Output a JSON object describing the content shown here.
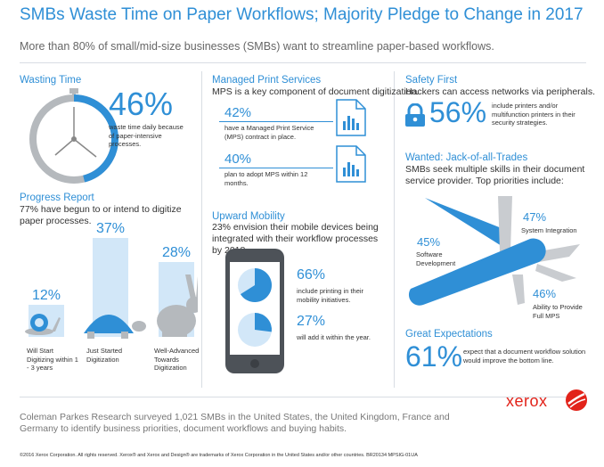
{
  "header": {
    "title": "SMBs Waste Time on Paper Workflows; Majority Pledge to Change in 2017",
    "subtitle": "More than 80% of small/mid-size businesses (SMBs) want to streamline paper-based workflows."
  },
  "wasting_time": {
    "heading": "Wasting Time",
    "stat": "46%",
    "desc": "waste time daily because of paper-intensive processes.",
    "fraction": 0.46
  },
  "progress": {
    "heading": "Progress Report",
    "desc": "77% have begun to or intend to digitize paper processes.",
    "bars": [
      {
        "value": "12%",
        "label": "Will Start Digitizing within 1 - 3 years",
        "num": 12,
        "icon": "snail-icon"
      },
      {
        "value": "37%",
        "label": "Just Started Digitization",
        "num": 37,
        "icon": "turtle-icon"
      },
      {
        "value": "28%",
        "label": "Well-Advanced Towards Digitization",
        "num": 28,
        "icon": "rabbit-icon"
      }
    ]
  },
  "mps": {
    "heading": "Managed Print Services",
    "desc": "MPS is a key component of document digitization.",
    "items": [
      {
        "value": "42%",
        "text": "have a Managed Print Service (MPS) contract in place."
      },
      {
        "value": "40%",
        "text": "plan to adopt MPS within 12 months."
      }
    ]
  },
  "mobility": {
    "heading": "Upward Mobility",
    "desc": "23% envision their mobile devices being integrated with their workflow processes by 2018.",
    "items": [
      {
        "value": "66%",
        "text": "include printing in their mobility initiatives."
      },
      {
        "value": "27%",
        "text": "will add it within the year."
      }
    ]
  },
  "safety": {
    "heading": "Safety First",
    "desc": "Hackers can access networks via peripherals.",
    "stat": "56%",
    "text": "include printers and/or multifunction printers in their security strategies."
  },
  "jack": {
    "heading": "Wanted: Jack-of-all-Trades",
    "desc": "SMBs seek multiple skills in their document service provider. Top priorities include:",
    "items": [
      {
        "value": "47%",
        "label": "System Integration"
      },
      {
        "value": "45%",
        "label": "Software Development"
      },
      {
        "value": "46%",
        "label": "Ability to Provide Full MPS"
      }
    ]
  },
  "expectations": {
    "heading": "Great Expectations",
    "stat": "61%",
    "text": "expect that a document workflow solution would improve the bottom line."
  },
  "brand": {
    "logo_text": "xerox",
    "color": "#e2231a"
  },
  "footer": {
    "text": "Coleman Parkes Research surveyed 1,021 SMBs in the United States, the United Kingdom, France and Germany to identify business priorities, document workflows and  buying habits.",
    "legal": "©2016 Xerox Corporation. All rights reserved. Xerox® and Xerox and Design® are trademarks of Xerox Corporation in the United States and/or other countries.  BR20134  MPSIG-01UA"
  },
  "colors": {
    "accent": "#2f8fd6",
    "light_bar": "#d2e7f8",
    "gray": "#b5b9bd"
  }
}
